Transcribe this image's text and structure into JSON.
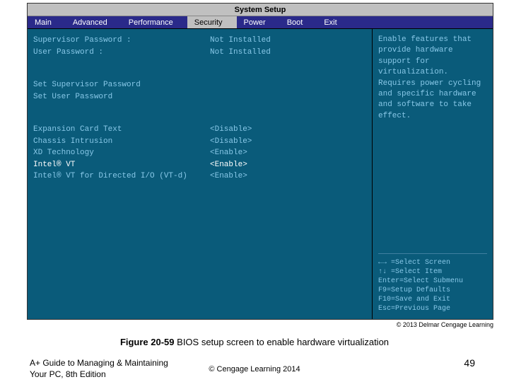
{
  "bios": {
    "title": "System Setup",
    "tabs": [
      "Main",
      "Advanced",
      "Performance",
      "Security",
      "Power",
      "Boot",
      "Exit"
    ],
    "active_tab_index": 3,
    "rows_group1": [
      {
        "label": "Supervisor Password :",
        "value": "Not Installed"
      },
      {
        "label": "User Password :",
        "value": "Not Installed"
      }
    ],
    "rows_group2": [
      {
        "label": "Set Supervisor Password",
        "value": ""
      },
      {
        "label": "Set User Password",
        "value": ""
      }
    ],
    "rows_group3": [
      {
        "label": "Expansion Card Text",
        "value": "<Disable>"
      },
      {
        "label": "Chassis Intrusion",
        "value": "<Disable>"
      },
      {
        "label": "XD Technology",
        "value": "<Enable>"
      },
      {
        "label": "Intel® VT",
        "value": "<Enable>"
      },
      {
        "label": "Intel® VT for Directed I/O (VT-d)",
        "value": "<Enable>"
      }
    ],
    "selected_row_label": "Intel® VT",
    "help_text": "Enable features that provide hardware support for virtualization. Requires power cycling and specific hardware and software to take effect.",
    "nav_help": [
      "←→ =Select Screen",
      "↑↓ =Select Item",
      "Enter=Select Submenu",
      "F9=Setup Defaults",
      "F10=Save and Exit",
      "Esc=Previous Page"
    ]
  },
  "slide": {
    "copyright_small": "© 2013 Delmar Cengage Learning",
    "caption_label": "Figure 20-59",
    "caption_text": " BIOS setup screen to enable hardware virtualization",
    "footer_left_line1": "A+ Guide to Managing & Maintaining",
    "footer_left_line2": "Your PC, 8th Edition",
    "footer_center": "© Cengage Learning 2014",
    "page_number": "49"
  },
  "colors": {
    "bios_bg": "#0a5b7a",
    "menubar_bg": "#2a2a8a",
    "titlebar_bg": "#c0c0c0",
    "text_light": "#88c8e8",
    "text_selected": "#ffffff"
  }
}
